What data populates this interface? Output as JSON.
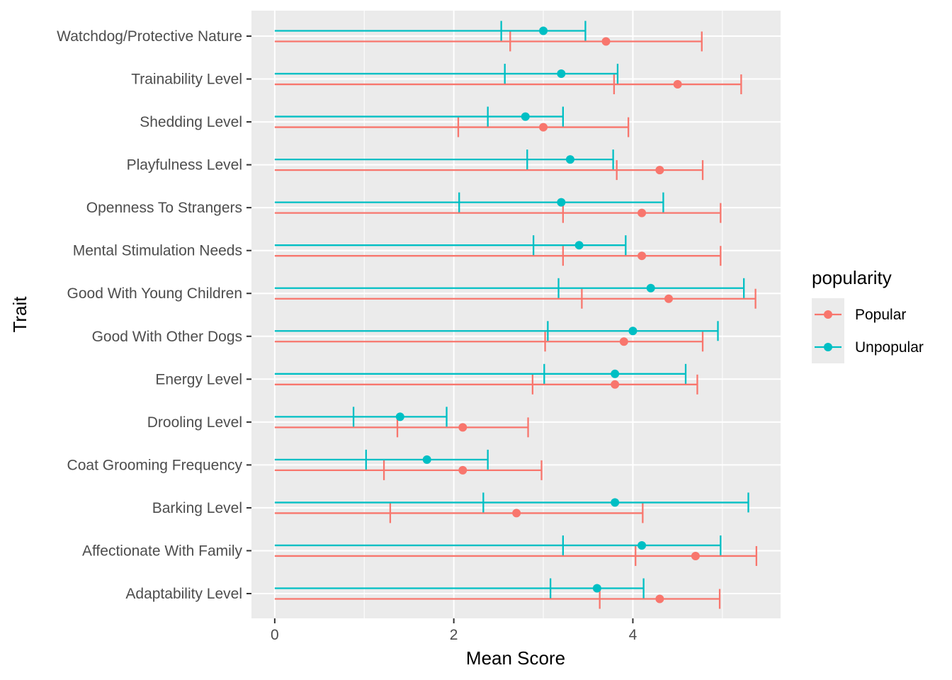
{
  "chart_data": {
    "type": "errorbar-dot",
    "title": "",
    "xlabel": "Mean Score",
    "ylabel": "Trait",
    "xlim": [
      -0.26,
      5.65
    ],
    "x_ticks": [
      0,
      2,
      4
    ],
    "x_tick_labels": [
      "0",
      "2",
      "4"
    ],
    "grid": true,
    "background": "#ebebeb",
    "legend": {
      "title": "popularity",
      "position": "right",
      "entries": [
        "Popular",
        "Unpopular"
      ]
    },
    "categories": [
      "Watchdog/Protective Nature",
      "Trainability Level",
      "Shedding Level",
      "Playfulness Level",
      "Openness To Strangers",
      "Mental Stimulation Needs",
      "Good With Young Children",
      "Good With Other Dogs",
      "Energy Level",
      "Drooling Level",
      "Coat Grooming Frequency",
      "Barking Level",
      "Affectionate With Family",
      "Adaptability Level"
    ],
    "series": [
      {
        "name": "Popular",
        "color": "#F8766D",
        "mean": [
          3.7,
          4.5,
          3.0,
          4.3,
          4.1,
          4.1,
          4.4,
          3.9,
          3.8,
          2.1,
          2.1,
          2.7,
          4.7,
          4.3
        ],
        "lower": [
          2.63,
          3.79,
          2.05,
          3.82,
          3.22,
          3.22,
          3.43,
          3.02,
          2.88,
          1.37,
          1.22,
          1.29,
          4.03,
          3.63
        ],
        "upper": [
          4.77,
          5.21,
          3.95,
          4.78,
          4.98,
          4.98,
          5.37,
          4.78,
          4.72,
          2.83,
          2.98,
          4.11,
          5.38,
          4.97
        ],
        "min": [
          0,
          0,
          0,
          0,
          0,
          0,
          0,
          0,
          0,
          0,
          0,
          0,
          0,
          0
        ]
      },
      {
        "name": "Unpopular",
        "color": "#00BFC4",
        "mean": [
          3.0,
          3.2,
          2.8,
          3.3,
          3.2,
          3.4,
          4.2,
          4.0,
          3.8,
          1.4,
          1.7,
          3.8,
          4.1,
          3.6
        ],
        "lower": [
          2.53,
          2.57,
          2.38,
          2.82,
          2.06,
          2.89,
          3.17,
          3.05,
          3.01,
          0.88,
          1.02,
          2.33,
          3.22,
          3.08
        ],
        "upper": [
          3.47,
          3.83,
          3.22,
          3.78,
          4.34,
          3.92,
          5.24,
          4.95,
          4.59,
          1.92,
          2.38,
          5.29,
          4.98,
          4.12
        ],
        "min": [
          0,
          0,
          0,
          0,
          0,
          0,
          0,
          0,
          0,
          0,
          0,
          0,
          0,
          0
        ]
      }
    ]
  }
}
